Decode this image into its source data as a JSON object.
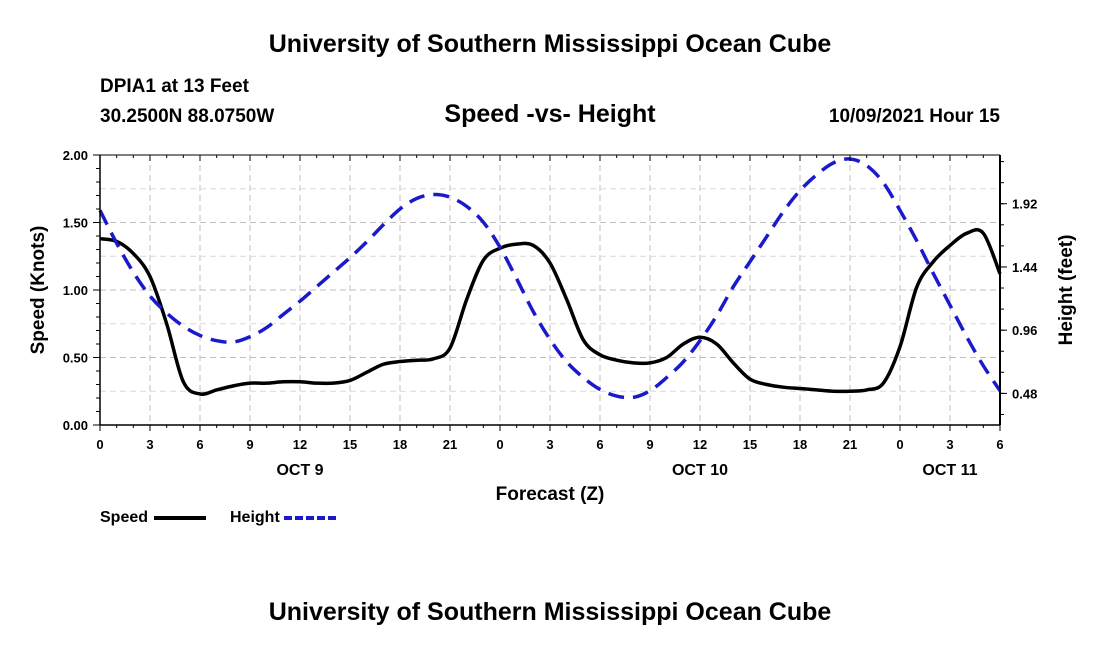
{
  "header": {
    "title": "University of Southern Mississippi Ocean Cube",
    "station": "DPIA1 at 13 Feet",
    "coordinates": "30.2500N  88.0750W",
    "subtitle": "Speed -vs- Height",
    "datetime": "10/09/2021 Hour 15"
  },
  "footer": {
    "title": "University of Southern Mississippi Ocean Cube"
  },
  "legend": {
    "speed_label": "Speed",
    "height_label": "Height"
  },
  "colors": {
    "speed": "#000000",
    "height": "#1a1acc",
    "grid": "#bfbfbf",
    "axis": "#000000"
  },
  "chart_data": {
    "type": "line",
    "title": "Speed -vs- Height",
    "xlabel": "Forecast (Z)",
    "ylabel_left": "Speed (Knots)",
    "ylabel_right": "Height (feet)",
    "grid": true,
    "xlim": [
      0,
      54
    ],
    "x_ticks": [
      0,
      3,
      6,
      9,
      12,
      15,
      18,
      21,
      24,
      27,
      30,
      33,
      36,
      39,
      42,
      45,
      48,
      51,
      54
    ],
    "x_tick_labels": [
      "0",
      "3",
      "6",
      "9",
      "12",
      "15",
      "18",
      "21",
      "0",
      "3",
      "6",
      "9",
      "12",
      "15",
      "18",
      "21",
      "0",
      "3",
      "6"
    ],
    "day_labels": [
      {
        "x": 12,
        "label": "OCT 9"
      },
      {
        "x": 36,
        "label": "OCT 10"
      },
      {
        "x": 51,
        "label": "OCT 11"
      }
    ],
    "ylim_left": [
      0,
      2.0
    ],
    "y_ticks_left": [
      0,
      0.5,
      1.0,
      1.5,
      2.0
    ],
    "y_tick_labels_left": [
      "0.00",
      "0.50",
      "1.00",
      "1.50",
      "2.00"
    ],
    "ylim_right": [
      0.24,
      2.29
    ],
    "y_ticks_right": [
      0.48,
      0.96,
      1.44,
      1.92
    ],
    "y_tick_labels_right": [
      "0.48",
      "0.96",
      "1.44",
      "1.92"
    ],
    "series": [
      {
        "name": "Speed",
        "axis": "left",
        "style": "solid",
        "x": [
          0,
          1,
          2,
          3,
          4,
          5,
          6,
          7,
          8,
          9,
          10,
          11,
          12,
          13,
          14,
          15,
          16,
          17,
          18,
          19,
          20,
          21,
          22,
          23,
          24,
          25,
          26,
          27,
          28,
          29,
          30,
          31,
          32,
          33,
          34,
          35,
          36,
          37,
          38,
          39,
          40,
          41,
          42,
          43,
          44,
          45,
          46,
          47,
          48,
          49,
          50,
          51,
          52,
          53,
          54
        ],
        "values": [
          1.38,
          1.36,
          1.27,
          1.1,
          0.75,
          0.32,
          0.23,
          0.26,
          0.29,
          0.31,
          0.31,
          0.32,
          0.32,
          0.31,
          0.31,
          0.33,
          0.39,
          0.45,
          0.47,
          0.48,
          0.49,
          0.57,
          0.93,
          1.22,
          1.31,
          1.34,
          1.33,
          1.2,
          0.93,
          0.63,
          0.52,
          0.48,
          0.46,
          0.46,
          0.5,
          0.6,
          0.65,
          0.6,
          0.46,
          0.34,
          0.3,
          0.28,
          0.27,
          0.26,
          0.25,
          0.25,
          0.26,
          0.31,
          0.58,
          1.02,
          1.21,
          1.33,
          1.42,
          1.42,
          1.12
        ]
      },
      {
        "name": "Height",
        "axis": "right",
        "style": "dashed",
        "x": [
          0,
          1,
          2,
          3,
          4,
          5,
          6,
          7,
          8,
          9,
          10,
          11,
          12,
          13,
          14,
          15,
          16,
          17,
          18,
          19,
          20,
          21,
          22,
          23,
          24,
          25,
          26,
          27,
          28,
          29,
          30,
          31,
          32,
          33,
          34,
          35,
          36,
          37,
          38,
          39,
          40,
          41,
          42,
          43,
          44,
          45,
          46,
          47,
          48,
          49,
          50,
          51,
          52,
          53,
          54
        ],
        "values": [
          1.87,
          1.62,
          1.4,
          1.22,
          1.09,
          0.99,
          0.92,
          0.88,
          0.87,
          0.91,
          0.98,
          1.08,
          1.18,
          1.29,
          1.4,
          1.51,
          1.63,
          1.76,
          1.88,
          1.96,
          1.99,
          1.97,
          1.9,
          1.78,
          1.59,
          1.35,
          1.1,
          0.89,
          0.72,
          0.6,
          0.51,
          0.46,
          0.45,
          0.5,
          0.6,
          0.72,
          0.88,
          1.07,
          1.29,
          1.48,
          1.67,
          1.86,
          2.02,
          2.14,
          2.23,
          2.26,
          2.21,
          2.08,
          1.87,
          1.64,
          1.39,
          1.15,
          0.91,
          0.69,
          0.5
        ]
      }
    ]
  }
}
